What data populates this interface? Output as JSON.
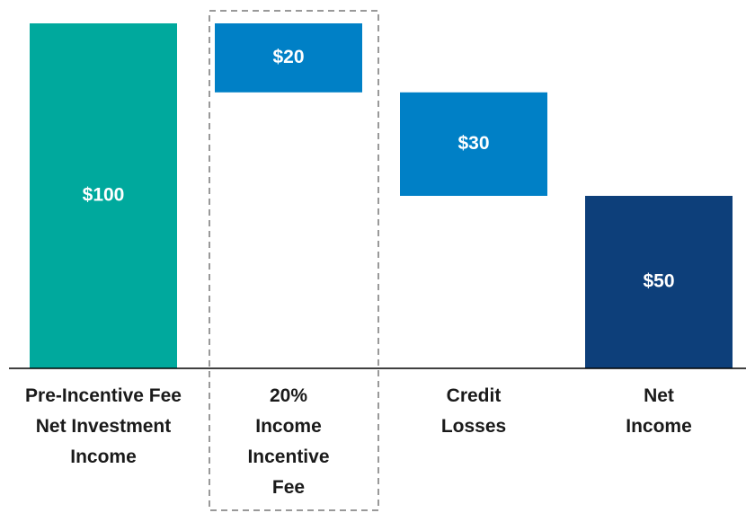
{
  "chart_data": {
    "type": "waterfall",
    "categories": [
      "Pre-Incentive Fee\nNet Investment\nIncome",
      "20%\nIncome\nIncentive\nFee",
      "Credit\nLosses",
      "Net\nIncome"
    ],
    "values": [
      100,
      20,
      30,
      50
    ],
    "value_labels": [
      "$100",
      "$20",
      "$30",
      "$50"
    ],
    "colors": [
      "#00a99d",
      "#0080c6",
      "#0080c6",
      "#0d3f7a"
    ],
    "ylim": [
      0,
      100
    ],
    "highlight": 1
  }
}
